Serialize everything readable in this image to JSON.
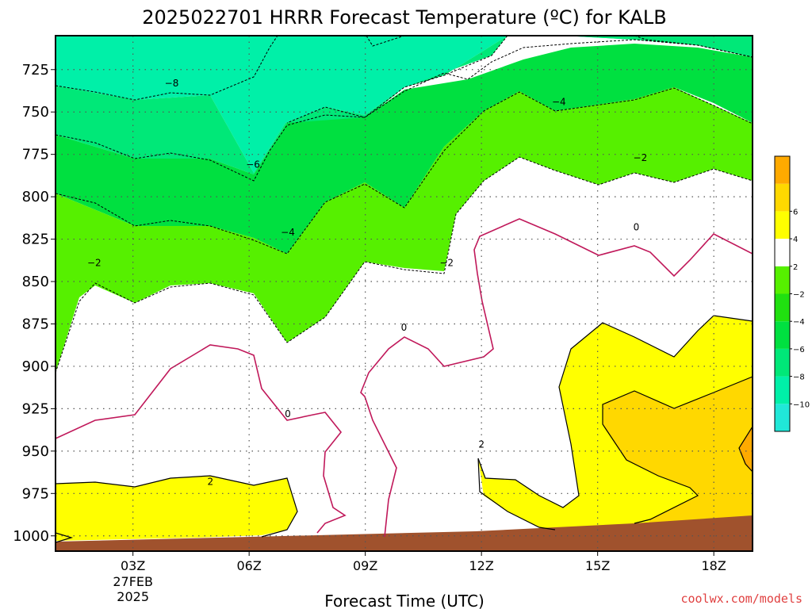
{
  "chart_data": {
    "type": "heatmap",
    "title": "2025022701 HRRR Forecast Temperature (ºC) for KALB",
    "xlabel": "Forecast Time (UTC)",
    "ylabel": "",
    "credit": "coolwx.com/models",
    "credit_color": "#e04040",
    "x_hour_range": [
      1,
      19
    ],
    "x_ticks": [
      {
        "hour": 3,
        "label": "03Z",
        "sublabels": [
          "27FEB",
          "2025"
        ]
      },
      {
        "hour": 6,
        "label": "06Z",
        "sublabels": []
      },
      {
        "hour": 9,
        "label": "09Z",
        "sublabels": []
      },
      {
        "hour": 12,
        "label": "12Z",
        "sublabels": []
      },
      {
        "hour": 15,
        "label": "15Z",
        "sublabels": []
      },
      {
        "hour": 18,
        "label": "18Z",
        "sublabels": []
      }
    ],
    "y_range_hpa": [
      705,
      1009
    ],
    "y_ticks": [
      725,
      750,
      775,
      800,
      825,
      850,
      875,
      900,
      925,
      950,
      975,
      1000
    ],
    "grid": true,
    "colorbar": {
      "placement": "right",
      "levels": [
        {
          "label": "",
          "color": "#20e8d8"
        },
        {
          "label": "-10",
          "color": "#00f0a8"
        },
        {
          "label": "-8",
          "color": "#00e878"
        },
        {
          "label": "-6",
          "color": "#00e040"
        },
        {
          "label": "-4",
          "color": "#20e010"
        },
        {
          "label": "-2",
          "color": "#56f000"
        },
        {
          "label": "2",
          "color": "#ffffff"
        },
        {
          "label": "4",
          "color": "#ffff00"
        },
        {
          "label": "6",
          "color": "#ffd800"
        },
        {
          "label": "",
          "color": "#ffaa00"
        }
      ]
    },
    "ground_color": "#a0522d",
    "contour_labels": [
      {
        "text": "-8",
        "hour": 4.0,
        "p": 733
      },
      {
        "text": "-6",
        "hour": 6.1,
        "p": 781
      },
      {
        "text": "-4",
        "hour": 7.0,
        "p": 821
      },
      {
        "text": "-4",
        "hour": 14.0,
        "p": 744
      },
      {
        "text": "-2",
        "hour": 2.0,
        "p": 839
      },
      {
        "text": "-2",
        "hour": 11.1,
        "p": 839
      },
      {
        "text": "-2",
        "hour": 16.1,
        "p": 777
      },
      {
        "text": "0",
        "hour": 7.0,
        "p": 928
      },
      {
        "text": "0",
        "hour": 10.0,
        "p": 877
      },
      {
        "text": "0",
        "hour": 16.0,
        "p": 818
      },
      {
        "text": "2",
        "hour": 5.0,
        "p": 968
      },
      {
        "text": "2",
        "hour": 12.0,
        "p": 946
      }
    ]
  }
}
